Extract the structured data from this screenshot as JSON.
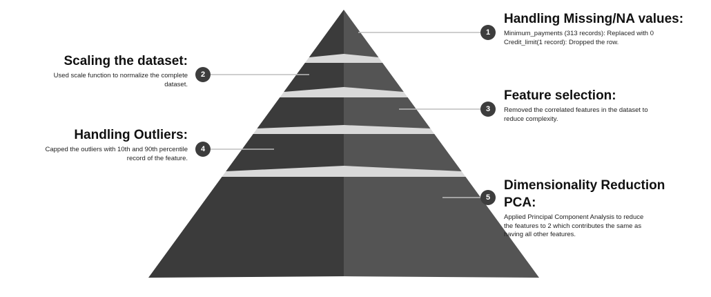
{
  "colors": {
    "left_face": "#3b3b3b",
    "right_face": "#545454",
    "gap": "#d9d9d9",
    "connector": "#bdbdbd",
    "badge": "#3d3d3d"
  },
  "steps": [
    {
      "number": "1",
      "title": "Handling Missing/NA values:",
      "lines": [
        "Minimum_payments (313 records): Replaced with 0",
        "Credit_limit(1 record): Dropped  the row."
      ]
    },
    {
      "number": "2",
      "title": "Scaling the dataset:",
      "lines": [
        "Used scale function to normalize the complete",
        "dataset."
      ]
    },
    {
      "number": "3",
      "title": "Feature selection:",
      "lines": [
        "Removed the correlated features in the dataset to",
        "reduce complexity."
      ]
    },
    {
      "number": "4",
      "title": "Handling Outliers:",
      "lines": [
        "Capped the outliers with 10th and 90th percentile",
        "record of the feature."
      ]
    },
    {
      "number": "5",
      "title": "Dimensionality Reduction",
      "title_line2": "PCA:",
      "lines": [
        "Applied Principal Component Analysis to reduce",
        "the features to 2 which contributes the same as",
        "having all other features."
      ]
    }
  ]
}
